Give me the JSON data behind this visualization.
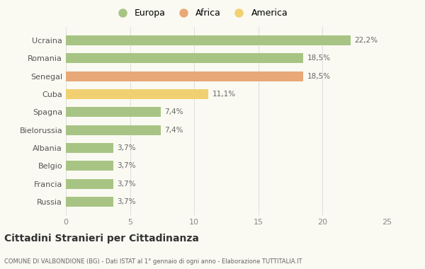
{
  "categories": [
    "Russia",
    "Francia",
    "Belgio",
    "Albania",
    "Bielorussia",
    "Spagna",
    "Cuba",
    "Senegal",
    "Romania",
    "Ucraina"
  ],
  "values": [
    3.7,
    3.7,
    3.7,
    3.7,
    7.4,
    7.4,
    11.1,
    18.5,
    18.5,
    22.2
  ],
  "labels": [
    "3,7%",
    "3,7%",
    "3,7%",
    "3,7%",
    "7,4%",
    "7,4%",
    "11,1%",
    "18,5%",
    "18,5%",
    "22,2%"
  ],
  "colors": [
    "#a8c484",
    "#a8c484",
    "#a8c484",
    "#a8c484",
    "#a8c484",
    "#a8c484",
    "#f0d070",
    "#e8a878",
    "#a8c484",
    "#a8c484"
  ],
  "legend_labels": [
    "Europa",
    "Africa",
    "America"
  ],
  "legend_colors": [
    "#a8c484",
    "#e8a878",
    "#f0d070"
  ],
  "title": "Cittadini Stranieri per Cittadinanza",
  "subtitle": "COMUNE DI VALBONDIONE (BG) - Dati ISTAT al 1° gennaio di ogni anno - Elaborazione TUTTITALIA.IT",
  "xlim": [
    0,
    25
  ],
  "xticks": [
    0,
    5,
    10,
    15,
    20,
    25
  ],
  "background_color": "#fafaf2",
  "bar_height": 0.55
}
